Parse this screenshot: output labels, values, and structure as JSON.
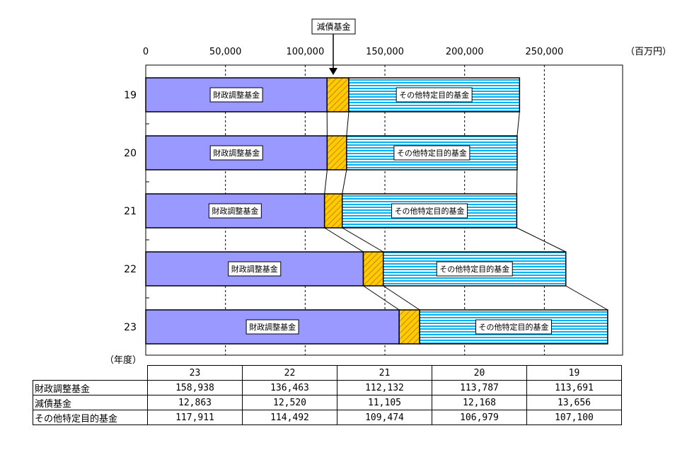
{
  "chart_data": {
    "type": "bar",
    "orientation": "horizontal",
    "stacked": true,
    "unit_label": "（百万円）",
    "ylabel": "（年度）",
    "annotation": "減債基金",
    "categories": [
      "19",
      "20",
      "21",
      "22",
      "23"
    ],
    "x_ticks": [
      "0",
      "50,000",
      "100,000",
      "150,000",
      "200,000",
      "250,000"
    ],
    "xlim": [
      0,
      300000
    ],
    "grid": "vertical dashed",
    "series": [
      {
        "name": "財政調整基金",
        "color": "#9999ff",
        "pattern": "solid",
        "values": [
          113691,
          113787,
          112132,
          136463,
          158938
        ]
      },
      {
        "name": "減債基金",
        "color": "#ffcc00",
        "pattern": "diagonal-hatch",
        "values": [
          13656,
          12168,
          11105,
          12520,
          12863
        ]
      },
      {
        "name": "その他特定目的基金",
        "color": "#00b0f0",
        "pattern": "horizontal-stripes",
        "values": [
          107100,
          106979,
          109474,
          114492,
          117911
        ]
      }
    ]
  },
  "table": {
    "columns": [
      "23",
      "22",
      "21",
      "20",
      "19"
    ],
    "rows": [
      {
        "label": "財政調整基金",
        "values": [
          "158,938",
          "136,463",
          "112,132",
          "113,787",
          "113,691"
        ]
      },
      {
        "label": "減債基金",
        "values": [
          "12,863",
          "12,520",
          "11,105",
          "12,168",
          "13,656"
        ]
      },
      {
        "label": "その他特定目的基金",
        "values": [
          "117,911",
          "114,492",
          "109,474",
          "106,979",
          "107,100"
        ]
      }
    ]
  }
}
